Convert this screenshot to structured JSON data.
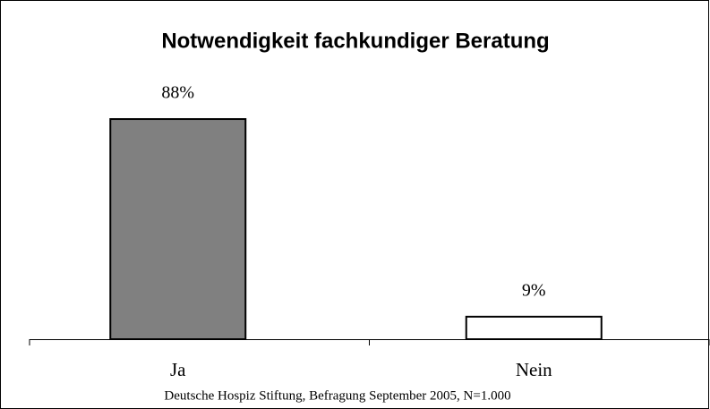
{
  "chart_data": {
    "type": "bar",
    "title": "Notwendigkeit fachkundiger Beratung",
    "categories": [
      "Ja",
      "Nein"
    ],
    "values": [
      88,
      9
    ],
    "value_labels": [
      "88%",
      "9%"
    ],
    "colors": [
      "#808080",
      "#ffffff"
    ],
    "source": "Deutsche Hospiz Stiftung, Befragung September 2005, N=1.000"
  }
}
